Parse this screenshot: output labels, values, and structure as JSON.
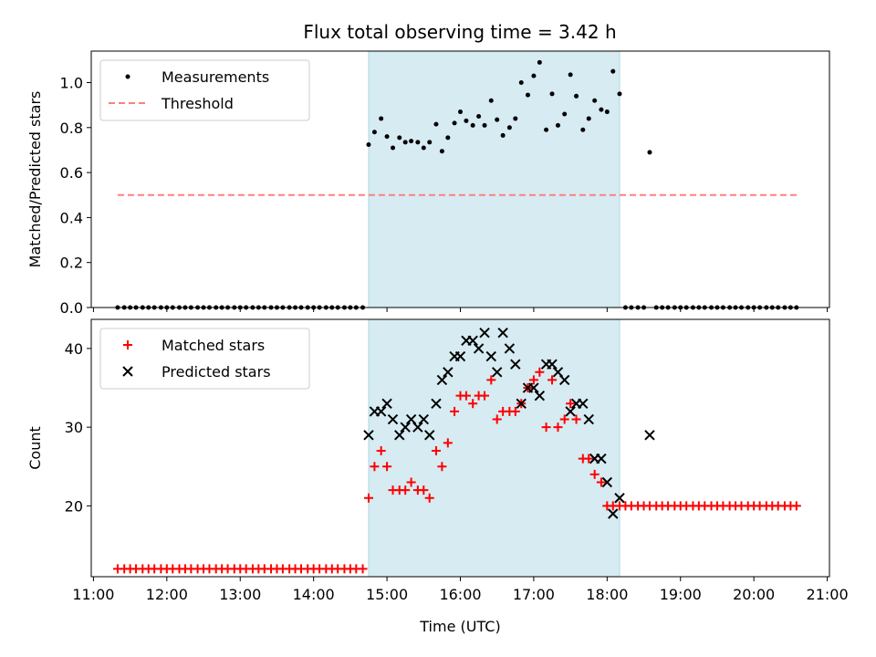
{
  "chart_data": [
    {
      "type": "scatter",
      "title": "Flux total observing time = 3.42 h",
      "xlabel": "",
      "ylabel": "Matched/Predicted stars",
      "xlim": [
        10.97,
        21.03
      ],
      "ylim": [
        0.0,
        1.14
      ],
      "yticks": [
        0.0,
        0.2,
        0.4,
        0.6,
        0.8,
        1.0
      ],
      "ytick_labels": [
        "0.0",
        "0.2",
        "0.4",
        "0.6",
        "0.8",
        "1.0"
      ],
      "xticks": [
        11,
        12,
        13,
        14,
        15,
        16,
        17,
        18,
        19,
        20,
        21
      ],
      "shaded_interval": [
        14.75,
        18.17
      ],
      "legend_position": "top-left",
      "legend": [
        "Measurements",
        "Threshold"
      ],
      "threshold": {
        "name": "Threshold",
        "value": 0.5,
        "x_range": [
          11.33,
          20.6
        ],
        "color": "#ff7f7f"
      },
      "series": [
        {
          "name": "Measurements",
          "color": "#000000",
          "x": [
            11.33,
            11.42,
            11.5,
            11.58,
            11.67,
            11.75,
            11.83,
            11.92,
            12.0,
            12.08,
            12.17,
            12.25,
            12.33,
            12.42,
            12.5,
            12.58,
            12.67,
            12.75,
            12.83,
            12.92,
            13.0,
            13.08,
            13.17,
            13.25,
            13.33,
            13.42,
            13.5,
            13.58,
            13.67,
            13.75,
            13.83,
            13.92,
            14.0,
            14.08,
            14.17,
            14.25,
            14.33,
            14.42,
            14.5,
            14.58,
            14.67,
            14.75,
            14.83,
            14.92,
            15.0,
            15.08,
            15.17,
            15.25,
            15.33,
            15.42,
            15.5,
            15.58,
            15.67,
            15.75,
            15.83,
            15.92,
            16.0,
            16.08,
            16.17,
            16.25,
            16.33,
            16.42,
            16.5,
            16.58,
            16.67,
            16.75,
            16.83,
            16.92,
            17.0,
            17.08,
            17.17,
            17.25,
            17.33,
            17.42,
            17.5,
            17.58,
            17.67,
            17.75,
            17.83,
            17.92,
            18.0,
            18.08,
            18.17,
            18.25,
            18.33,
            18.42,
            18.5,
            18.58,
            18.67,
            18.75,
            18.83,
            18.92,
            19.0,
            19.08,
            19.17,
            19.25,
            19.33,
            19.42,
            19.5,
            19.58,
            19.67,
            19.75,
            19.83,
            19.92,
            20.0,
            20.08,
            20.17,
            20.25,
            20.33,
            20.42,
            20.5,
            20.58
          ],
          "y": [
            0,
            0,
            0,
            0,
            0,
            0,
            0,
            0,
            0,
            0,
            0,
            0,
            0,
            0,
            0,
            0,
            0,
            0,
            0,
            0,
            0,
            0,
            0,
            0,
            0,
            0,
            0,
            0,
            0,
            0,
            0,
            0,
            0,
            0,
            0,
            0,
            0,
            0,
            0,
            0,
            0,
            0.724,
            0.78,
            0.84,
            0.76,
            0.71,
            0.755,
            0.735,
            0.74,
            0.735,
            0.71,
            0.735,
            0.815,
            0.695,
            0.755,
            0.82,
            0.87,
            0.83,
            0.81,
            0.85,
            0.81,
            0.92,
            0.835,
            0.765,
            0.8,
            0.84,
            1.0,
            0.945,
            1.03,
            1.09,
            0.79,
            0.95,
            0.81,
            0.86,
            1.035,
            0.94,
            0.79,
            0.84,
            0.92,
            0.88,
            0.87,
            1.05,
            0.95,
            0,
            0,
            0,
            0,
            0.69,
            0,
            0,
            0,
            0,
            0,
            0,
            0,
            0,
            0,
            0,
            0,
            0,
            0,
            0,
            0,
            0,
            0,
            0,
            0,
            0,
            0,
            0,
            0,
            0
          ]
        }
      ]
    },
    {
      "type": "scatter",
      "title": "",
      "xlabel": "Time (UTC)",
      "ylabel": "Count",
      "xlim": [
        10.97,
        21.03
      ],
      "ylim": [
        11.0,
        43.7
      ],
      "yticks": [
        20,
        30,
        40
      ],
      "ytick_labels": [
        "20",
        "30",
        "40"
      ],
      "xticks": [
        11,
        12,
        13,
        14,
        15,
        16,
        17,
        18,
        19,
        20,
        21
      ],
      "xtick_labels": [
        "11:00",
        "12:00",
        "13:00",
        "14:00",
        "15:00",
        "16:00",
        "17:00",
        "18:00",
        "19:00",
        "20:00",
        "21:00"
      ],
      "shaded_interval": [
        14.75,
        18.17
      ],
      "legend_position": "top-left",
      "legend": [
        "Matched stars",
        "Predicted stars"
      ],
      "series": [
        {
          "name": "Matched stars",
          "marker": "+",
          "color": "#ff0000",
          "x": [
            11.33,
            11.42,
            11.5,
            11.58,
            11.67,
            11.75,
            11.83,
            11.92,
            12.0,
            12.08,
            12.17,
            12.25,
            12.33,
            12.42,
            12.5,
            12.58,
            12.67,
            12.75,
            12.83,
            12.92,
            13.0,
            13.08,
            13.17,
            13.25,
            13.33,
            13.42,
            13.5,
            13.58,
            13.67,
            13.75,
            13.83,
            13.92,
            14.0,
            14.08,
            14.17,
            14.25,
            14.33,
            14.42,
            14.5,
            14.58,
            14.67,
            14.75,
            14.83,
            14.92,
            15.0,
            15.08,
            15.17,
            15.25,
            15.33,
            15.42,
            15.5,
            15.58,
            15.67,
            15.75,
            15.83,
            15.92,
            16.0,
            16.08,
            16.17,
            16.25,
            16.33,
            16.42,
            16.5,
            16.58,
            16.67,
            16.75,
            16.83,
            16.92,
            17.0,
            17.08,
            17.17,
            17.25,
            17.33,
            17.42,
            17.5,
            17.58,
            17.67,
            17.75,
            17.83,
            17.92,
            18.0,
            18.08,
            18.17,
            18.25,
            18.33,
            18.42,
            18.5,
            18.58,
            18.67,
            18.75,
            18.83,
            18.92,
            19.0,
            19.08,
            19.17,
            19.25,
            19.33,
            19.42,
            19.5,
            19.58,
            19.67,
            19.75,
            19.83,
            19.92,
            20.0,
            20.08,
            20.17,
            20.25,
            20.33,
            20.42,
            20.5,
            20.58
          ],
          "y": [
            12,
            12,
            12,
            12,
            12,
            12,
            12,
            12,
            12,
            12,
            12,
            12,
            12,
            12,
            12,
            12,
            12,
            12,
            12,
            12,
            12,
            12,
            12,
            12,
            12,
            12,
            12,
            12,
            12,
            12,
            12,
            12,
            12,
            12,
            12,
            12,
            12,
            12,
            12,
            12,
            12,
            21,
            25,
            27,
            25,
            22,
            22,
            22,
            23,
            22,
            22,
            21,
            27,
            25,
            28,
            32,
            34,
            34,
            33,
            34,
            34,
            36,
            31,
            32,
            32,
            32,
            33,
            35,
            36,
            37,
            30,
            36,
            30,
            31,
            33,
            31,
            26,
            26,
            24,
            23,
            20,
            20,
            20,
            20,
            20,
            20,
            20,
            20,
            20,
            20,
            20,
            20,
            20,
            20,
            20,
            20,
            20,
            20,
            20,
            20,
            20,
            20,
            20,
            20,
            20,
            20,
            20,
            20,
            20,
            20,
            20,
            20
          ]
        },
        {
          "name": "Predicted stars",
          "marker": "x",
          "color": "#000000",
          "x": [
            14.75,
            14.83,
            14.92,
            15.0,
            15.08,
            15.17,
            15.25,
            15.33,
            15.42,
            15.5,
            15.58,
            15.67,
            15.75,
            15.83,
            15.92,
            16.0,
            16.08,
            16.17,
            16.25,
            16.33,
            16.42,
            16.5,
            16.58,
            16.67,
            16.75,
            16.83,
            16.92,
            17.0,
            17.08,
            17.17,
            17.25,
            17.33,
            17.42,
            17.5,
            17.58,
            17.67,
            17.75,
            17.83,
            17.92,
            18.0,
            18.08,
            18.17,
            18.58
          ],
          "y": [
            29,
            32,
            32,
            33,
            31,
            29,
            30,
            31,
            30,
            31,
            29,
            33,
            36,
            37,
            39,
            39,
            41,
            41,
            40,
            42,
            39,
            37,
            42,
            40,
            38,
            33,
            35,
            35,
            34,
            38,
            38,
            37,
            36,
            32,
            33,
            33,
            31,
            26,
            26,
            23,
            19,
            21,
            29
          ]
        }
      ]
    }
  ]
}
